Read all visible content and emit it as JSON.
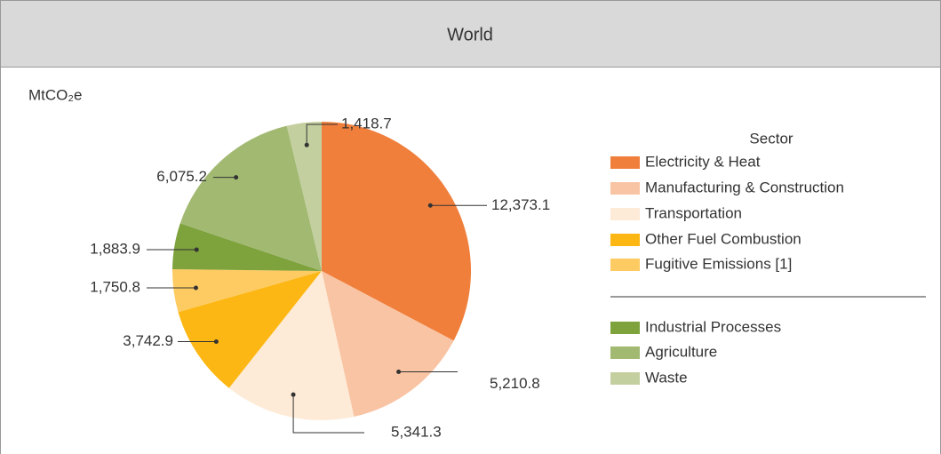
{
  "chart_data": {
    "type": "pie",
    "title": "World",
    "unit_label": "MtCO₂e",
    "legend_title": "Sector",
    "categories": [
      "Electricity & Heat",
      "Manufacturing & Construction",
      "Transportation",
      "Other Fuel Combustion",
      "Fugitive Emissions [1]",
      "Industrial Processes",
      "Agriculture",
      "Waste"
    ],
    "values": [
      12373.1,
      5210.8,
      5341.3,
      3742.9,
      1750.8,
      1883.9,
      6075.2,
      1418.7
    ],
    "value_labels": [
      "12,373.1",
      "5,210.8",
      "5,341.3",
      "3,742.9",
      "1,750.8",
      "1,883.9",
      "6,075.2",
      "1,418.7"
    ],
    "colors": [
      "#f07f3c",
      "#f9c4a3",
      "#fdebd7",
      "#fdb714",
      "#fdcb62",
      "#7ea23c",
      "#a2b972",
      "#c4cf9f"
    ]
  }
}
